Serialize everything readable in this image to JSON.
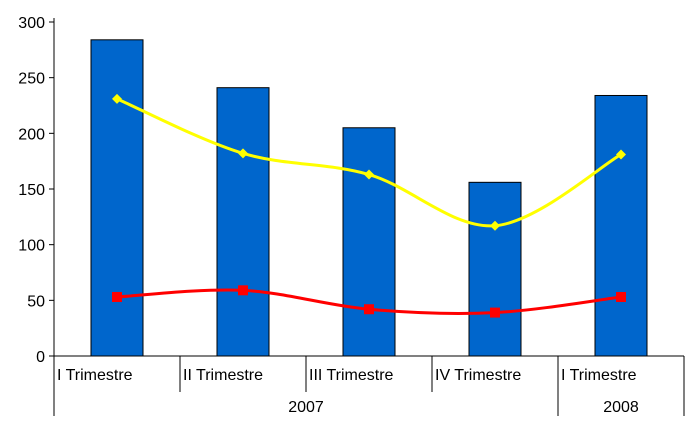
{
  "chart_data": {
    "type": "bar",
    "categories": [
      "I Trimestre",
      "II Trimestre",
      "III Trimestre",
      "IV Trimestre",
      "I Trimestre"
    ],
    "groups": [
      {
        "label": "2007",
        "span": [
          0,
          3
        ]
      },
      {
        "label": "2008",
        "span": [
          4,
          4
        ]
      }
    ],
    "series": [
      {
        "type": "bar",
        "values": [
          284,
          241,
          205,
          156,
          234
        ],
        "color": "#0066cc"
      },
      {
        "type": "line",
        "values": [
          231,
          182,
          163,
          117,
          181
        ],
        "color": "#ffff00",
        "marker": "diamond",
        "smooth": true
      },
      {
        "type": "line",
        "values": [
          53,
          59,
          42,
          39,
          53
        ],
        "color": "#ff0000",
        "marker": "square",
        "smooth": true
      }
    ],
    "ylim": [
      0,
      300
    ],
    "yticks": [
      0,
      50,
      100,
      150,
      200,
      250,
      300
    ],
    "ytick_labels": [
      "0",
      "50",
      "100",
      "150",
      "200",
      "250",
      "300"
    ],
    "grid": false,
    "title": "",
    "xlabel": "",
    "ylabel": ""
  }
}
